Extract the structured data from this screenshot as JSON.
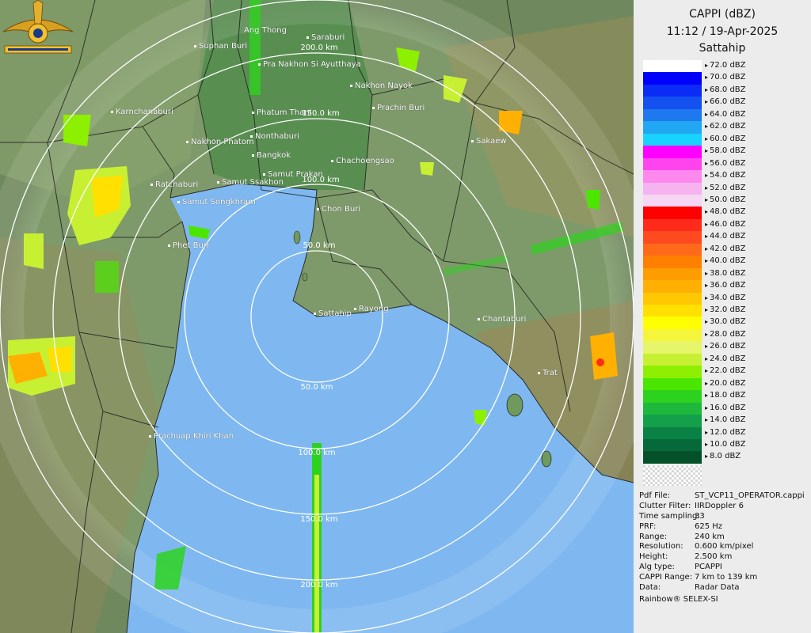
{
  "header": {
    "title": "CAPPI (dBZ)",
    "datetime": "11:12 / 19-Apr-2025",
    "site": "Sattahip"
  },
  "legend": [
    {
      "label": "72.0 dBZ",
      "color": "#ffffff"
    },
    {
      "label": "70.0 dBZ",
      "color": "#0000ff"
    },
    {
      "label": "68.0 dBZ",
      "color": "#0a2cf5"
    },
    {
      "label": "66.0 dBZ",
      "color": "#1550f0"
    },
    {
      "label": "64.0 dBZ",
      "color": "#1e78ee"
    },
    {
      "label": "62.0 dBZ",
      "color": "#22a8f2"
    },
    {
      "label": "60.0 dBZ",
      "color": "#19d2ff"
    },
    {
      "label": "58.0 dBZ",
      "color": "#ff00ff"
    },
    {
      "label": "56.0 dBZ",
      "color": "#ff44ee"
    },
    {
      "label": "54.0 dBZ",
      "color": "#ff88ee"
    },
    {
      "label": "52.0 dBZ",
      "color": "#f5b4f0"
    },
    {
      "label": "50.0 dBZ",
      "color": "#f7d6f5"
    },
    {
      "label": "48.0 dBZ",
      "color": "#ff0000"
    },
    {
      "label": "46.0 dBZ",
      "color": "#ff2a1a"
    },
    {
      "label": "44.0 dBZ",
      "color": "#ff4a20"
    },
    {
      "label": "42.0 dBZ",
      "color": "#ff6a1a"
    },
    {
      "label": "40.0 dBZ",
      "color": "#ff8000"
    },
    {
      "label": "38.0 dBZ",
      "color": "#ff9c00"
    },
    {
      "label": "36.0 dBZ",
      "color": "#ffb000"
    },
    {
      "label": "34.0 dBZ",
      "color": "#ffc800"
    },
    {
      "label": "32.0 dBZ",
      "color": "#ffe000"
    },
    {
      "label": "30.0 dBZ",
      "color": "#ffff00"
    },
    {
      "label": "28.0 dBZ",
      "color": "#f5f53c"
    },
    {
      "label": "26.0 dBZ",
      "color": "#e6f56a"
    },
    {
      "label": "24.0 dBZ",
      "color": "#c8f032"
    },
    {
      "label": "22.0 dBZ",
      "color": "#8cf000"
    },
    {
      "label": "20.0 dBZ",
      "color": "#4be600"
    },
    {
      "label": "18.0 dBZ",
      "color": "#2dd21e"
    },
    {
      "label": "16.0 dBZ",
      "color": "#1eb93c"
    },
    {
      "label": "14.0 dBZ",
      "color": "#14a04b"
    },
    {
      "label": "12.0 dBZ",
      "color": "#0a8246"
    },
    {
      "label": "10.0 dBZ",
      "color": "#06693a"
    },
    {
      "label": "8.0 dBZ",
      "color": "#045028"
    }
  ],
  "info": [
    {
      "key": "Pdf File:",
      "value": "ST_VCP11_OPERATOR.cappi"
    },
    {
      "key": "Clutter Filter:",
      "value": "IIRDoppler 6"
    },
    {
      "key": "Time sampling:",
      "value": "33"
    },
    {
      "key": "PRF:",
      "value": "625 Hz"
    },
    {
      "key": "Range:",
      "value": "240 km"
    },
    {
      "key": "Resolution:",
      "value": "0.600 km/pixel"
    },
    {
      "key": "Height:",
      "value": "2.500 km"
    },
    {
      "key": "Alg type:",
      "value": "PCAPPI"
    },
    {
      "key": "CAPPI Range:",
      "value": "7 km to 139 km"
    },
    {
      "key": "Data:",
      "value": "Radar Data"
    }
  ],
  "footer": "Rainbow® SELEX-SI",
  "rings": [
    "50.0 km",
    "100.0 km",
    "150.0 km",
    "200.0 km"
  ],
  "cities": [
    {
      "name": "Ang Thong"
    },
    {
      "name": "Saraburi"
    },
    {
      "name": "Suphan Buri"
    },
    {
      "name": "Pra Nakhon Si Ayutthaya"
    },
    {
      "name": "Nakhon Nayok"
    },
    {
      "name": "Prachin Buri"
    },
    {
      "name": "Karnchanaburi"
    },
    {
      "name": "Phatum Thani"
    },
    {
      "name": "Nonthaburi"
    },
    {
      "name": "Nakhon Phatom"
    },
    {
      "name": "Bangkok"
    },
    {
      "name": "Sakaew"
    },
    {
      "name": "Chachoengsao"
    },
    {
      "name": "Samut Prakan"
    },
    {
      "name": "Ratchaburi"
    },
    {
      "name": "Samut Ssakhon"
    },
    {
      "name": "Samut Songkhram"
    },
    {
      "name": "Chon Buri"
    },
    {
      "name": "Phet Buri"
    },
    {
      "name": "Sattahip"
    },
    {
      "name": "Rayong"
    },
    {
      "name": "Chantaburi"
    },
    {
      "name": "Trat"
    },
    {
      "name": "Prachuap Khiri Khan"
    }
  ],
  "colors": {
    "sea": "#7fb8f0",
    "land": "#6f9a5e",
    "panel": "#ececec"
  }
}
